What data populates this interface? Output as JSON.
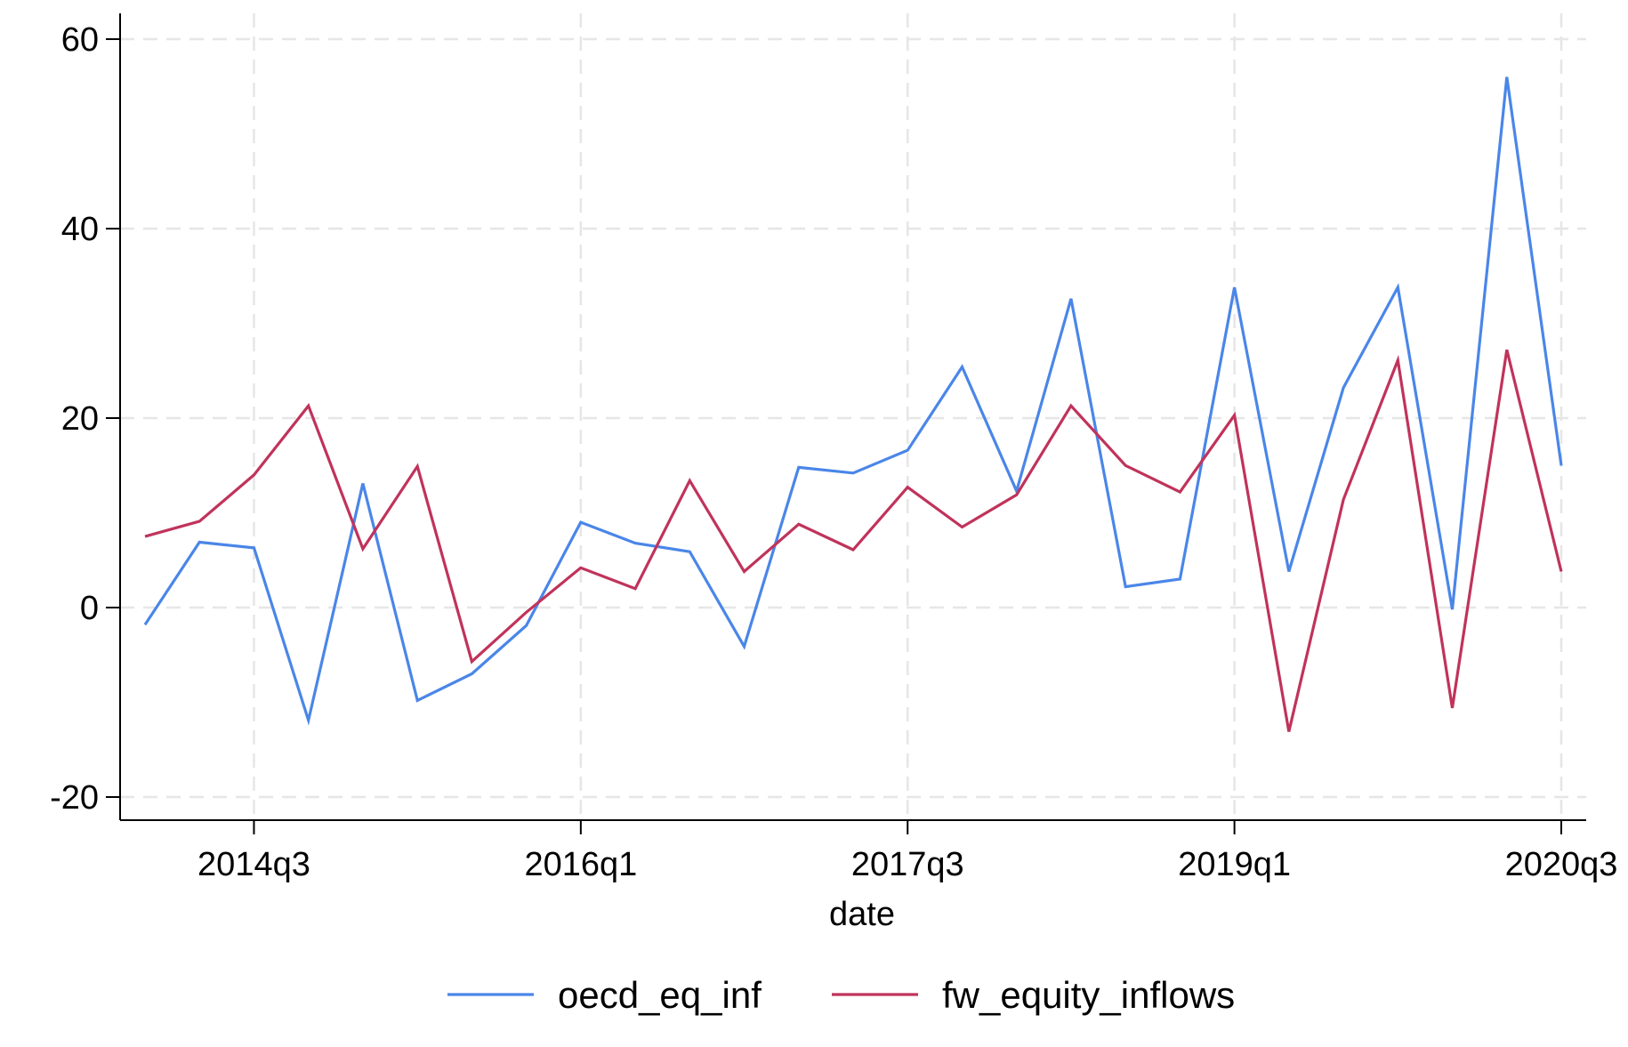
{
  "chart_data": {
    "type": "line",
    "xlabel": "date",
    "ylabel": "",
    "ylim": [
      -22,
      62
    ],
    "xlim": [
      "2014q1",
      "2020q3"
    ],
    "yticks": [
      -20,
      0,
      20,
      40,
      60
    ],
    "xticks": [
      "2014q3",
      "2016q1",
      "2017q3",
      "2019q1",
      "2020q3"
    ],
    "grid": true,
    "legend_position": "bottom",
    "x": [
      "2014q1",
      "2014q2",
      "2014q3",
      "2014q4",
      "2015q1",
      "2015q2",
      "2015q3",
      "2015q4",
      "2016q1",
      "2016q2",
      "2016q3",
      "2016q4",
      "2017q1",
      "2017q2",
      "2017q3",
      "2017q4",
      "2018q1",
      "2018q2",
      "2018q3",
      "2018q4",
      "2019q1",
      "2019q2",
      "2019q3",
      "2019q4",
      "2020q1",
      "2020q2",
      "2020q3"
    ],
    "series": [
      {
        "name": "oecd_eq_inf",
        "color": "#4a86e8",
        "values": [
          -1.8,
          6.9,
          6.3,
          -11.9,
          13.1,
          -9.8,
          -7.0,
          -1.9,
          9.0,
          6.8,
          5.9,
          -4.1,
          14.8,
          14.2,
          16.6,
          25.4,
          12.3,
          32.6,
          2.2,
          3.0,
          33.8,
          3.8,
          23.2,
          33.8,
          -0.2,
          56.0,
          15.0
        ]
      },
      {
        "name": "fw_equity_inflows",
        "color": "#c0335b",
        "values": [
          7.5,
          9.1,
          14.0,
          21.3,
          6.2,
          14.9,
          -5.7,
          -0.5,
          4.2,
          2.0,
          13.4,
          3.8,
          8.8,
          6.1,
          12.7,
          8.5,
          11.9,
          21.3,
          15.0,
          12.2,
          20.3,
          -13.1,
          11.4,
          26.1,
          -10.6,
          27.2,
          3.8
        ]
      }
    ]
  }
}
